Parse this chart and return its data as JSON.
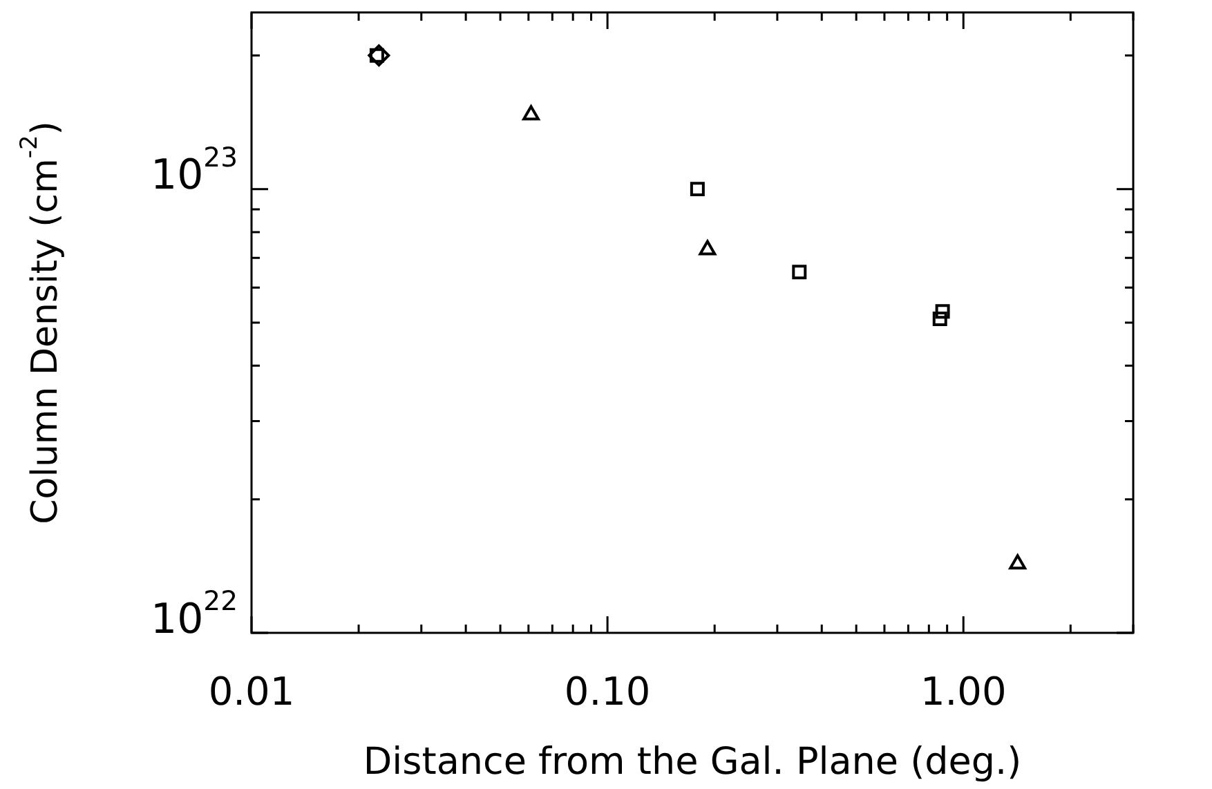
{
  "chart_data": {
    "type": "scatter",
    "xlabel": "Distance from the Gal. Plane (deg.)",
    "ylabel": "Column Density (cm$^{-2}$)",
    "log": "xy",
    "grid": false,
    "legend": false,
    "xlim": [
      0.01,
      3
    ],
    "ylim": [
      1e+22,
      2.5e+23
    ],
    "xticks": [
      {
        "value": 0.01,
        "label": "0.01"
      },
      {
        "value": 0.02,
        "label": null
      },
      {
        "value": 0.03,
        "label": null
      },
      {
        "value": 0.04,
        "label": null
      },
      {
        "value": 0.05,
        "label": null
      },
      {
        "value": 0.06,
        "label": null
      },
      {
        "value": 0.07,
        "label": null
      },
      {
        "value": 0.08,
        "label": null
      },
      {
        "value": 0.09,
        "label": null
      },
      {
        "value": 0.1,
        "label": "0.10"
      },
      {
        "value": 0.2,
        "label": null
      },
      {
        "value": 0.3,
        "label": null
      },
      {
        "value": 0.4,
        "label": null
      },
      {
        "value": 0.5,
        "label": null
      },
      {
        "value": 0.6,
        "label": null
      },
      {
        "value": 0.7,
        "label": null
      },
      {
        "value": 0.8,
        "label": null
      },
      {
        "value": 0.9,
        "label": null
      },
      {
        "value": 1,
        "label": "1.00"
      },
      {
        "value": 2,
        "label": null
      },
      {
        "value": 3,
        "label": null
      }
    ],
    "yticks": [
      {
        "value": 1e+22,
        "label": "10$^{22}$"
      },
      {
        "value": 2e+22,
        "label": null
      },
      {
        "value": 3e+22,
        "label": null
      },
      {
        "value": 4e+22,
        "label": null
      },
      {
        "value": 5e+22,
        "label": null
      },
      {
        "value": 6e+22,
        "label": null
      },
      {
        "value": 7e+22,
        "label": null
      },
      {
        "value": 8e+22,
        "label": null
      },
      {
        "value": 9e+22,
        "label": null
      },
      {
        "value": 1e+23,
        "label": "10$^{23}$"
      },
      {
        "value": 2e+23,
        "label": null
      }
    ],
    "series": [
      {
        "color": "#000000",
        "marker": "square",
        "x": [
          0.0225,
          0.179,
          0.346,
          0.859,
          0.874
        ],
        "values": [
          2e+23,
          1e+23,
          6.5e+22,
          5.1e+22,
          5.3e+22
        ]
      },
      {
        "color": "#000000",
        "marker": "triangle",
        "x": [
          0.061,
          0.191,
          1.42
        ],
        "values": [
          1.47e+23,
          7.3e+22,
          1.43e+22
        ]
      },
      {
        "color": "#000000",
        "marker": "diamond",
        "x": [
          0.0228
        ],
        "values": [
          2e+23
        ]
      }
    ]
  }
}
